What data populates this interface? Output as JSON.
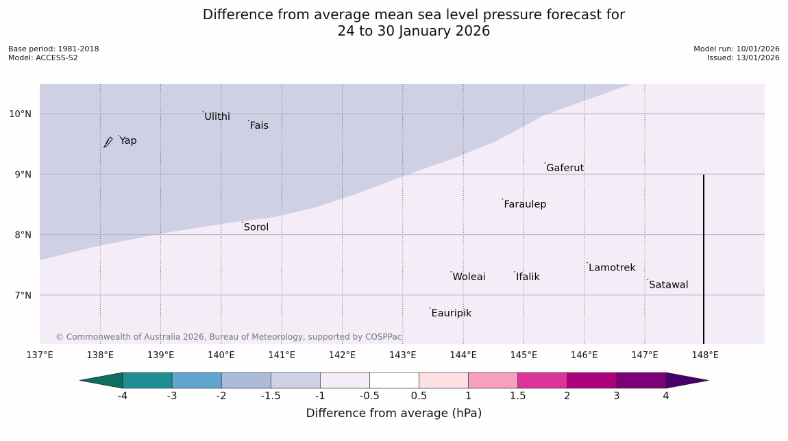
{
  "title": {
    "line1": "Difference from average mean sea level pressure forecast for",
    "line2": "24 to 30 January 2026"
  },
  "meta": {
    "base_period": "Base period: 1981-2018",
    "model": "Model: ACCESS-S2",
    "model_run": "Model run: 10/01/2026",
    "issued": "Issued: 13/01/2026"
  },
  "copyright": "© Commonwealth of Australia 2026, Bureau of Meteorology, supported by COSPPac",
  "map": {
    "lon_range": [
      137,
      149
    ],
    "lat_range": [
      6.2,
      10.5
    ],
    "lon_ticks": [
      "137°E",
      "138°E",
      "139°E",
      "140°E",
      "141°E",
      "142°E",
      "143°E",
      "144°E",
      "145°E",
      "146°E",
      "147°E",
      "148°E"
    ],
    "lat_ticks": [
      "10°N",
      "9°N",
      "8°N",
      "7°N"
    ],
    "places": [
      {
        "name": "Yap",
        "lon": 138.3,
        "lat": 9.5
      },
      {
        "name": "Ulithi",
        "lon": 139.7,
        "lat": 9.9
      },
      {
        "name": "Fais",
        "lon": 140.45,
        "lat": 9.75
      },
      {
        "name": "Sorol",
        "lon": 140.35,
        "lat": 8.07
      },
      {
        "name": "Gaferut",
        "lon": 145.35,
        "lat": 9.05
      },
      {
        "name": "Faraulep",
        "lon": 144.65,
        "lat": 8.45
      },
      {
        "name": "Lamotrek",
        "lon": 146.05,
        "lat": 7.4
      },
      {
        "name": "Woleai",
        "lon": 143.8,
        "lat": 7.25
      },
      {
        "name": "Ifalik",
        "lon": 144.85,
        "lat": 7.25
      },
      {
        "name": "Satawal",
        "lon": 147.05,
        "lat": 7.12
      },
      {
        "name": "Eauripik",
        "lon": 143.45,
        "lat": 6.65
      }
    ],
    "anomaly_regions": [
      {
        "category": "-1.5 to -1",
        "color": "#cfd0e3"
      },
      {
        "category": "-1 to -0.5",
        "color": "#f4ecf6"
      }
    ]
  },
  "colorbar": {
    "label": "Difference from average (hPa)",
    "ticks": [
      "-4",
      "-3",
      "-2",
      "-1.5",
      "-1",
      "-0.5",
      "0.5",
      "1",
      "1.5",
      "2",
      "3",
      "4"
    ],
    "colors": [
      "#0e6e5f",
      "#1d8f94",
      "#62a6d0",
      "#acbbd8",
      "#cfd0e3",
      "#f4ecf6",
      "#ffffff",
      "#fde0e1",
      "#f6a0bd",
      "#dd3499",
      "#ae017e",
      "#7a0177",
      "#49006a"
    ]
  }
}
